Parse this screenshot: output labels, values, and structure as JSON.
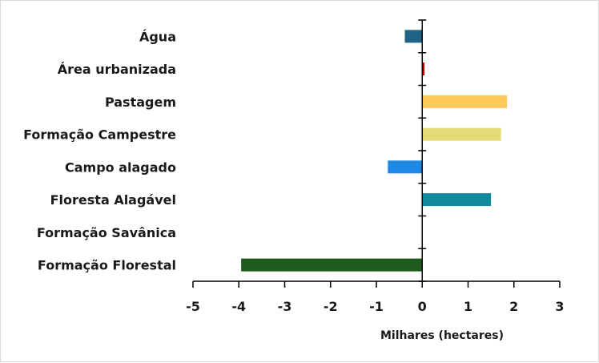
{
  "chart_data": {
    "type": "bar",
    "orientation": "horizontal",
    "title": "",
    "xlabel": "Milhares (hectares)",
    "ylabel": "",
    "xlim": [
      -5,
      3
    ],
    "xticks": [
      "-5",
      "-4",
      "-3",
      "-2",
      "-1",
      "0",
      "1",
      "2",
      "3"
    ],
    "grid": false,
    "legend": "none",
    "categories": [
      "Água",
      "Área urbanizada",
      "Pastagem",
      "Formação Campestre",
      "Campo alagado",
      "Floresta Alagável",
      "Formação Savânica",
      "Formação Florestal"
    ],
    "values": [
      -0.38,
      0.05,
      1.85,
      1.72,
      -0.75,
      1.5,
      0.0,
      -3.95
    ],
    "colors": [
      "#1f6387",
      "#c00000",
      "#fdcb5a",
      "#e3dc74",
      "#1e88e5",
      "#108a9e",
      "#1d4f91",
      "#1e5c1e"
    ]
  }
}
